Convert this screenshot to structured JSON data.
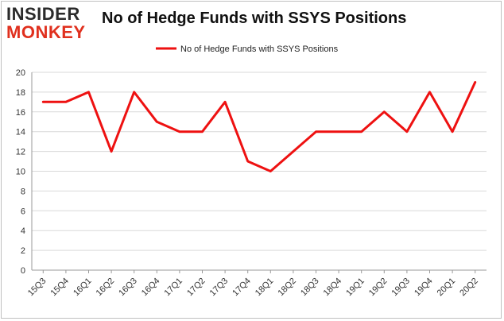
{
  "logo": {
    "line1": "INSIDER",
    "line2": "MONKEY"
  },
  "chart_data": {
    "type": "line",
    "title": "No of Hedge Funds with SSYS Positions",
    "xlabel": "",
    "ylabel": "",
    "ylim": [
      0,
      20
    ],
    "yticks": [
      0,
      2,
      4,
      6,
      8,
      10,
      12,
      14,
      16,
      18,
      20
    ],
    "grid": "horizontal",
    "legend_position": "top-center",
    "categories": [
      "15Q3",
      "15Q4",
      "16Q1",
      "16Q2",
      "16Q3",
      "16Q4",
      "17Q1",
      "17Q2",
      "17Q3",
      "17Q4",
      "18Q1",
      "18Q2",
      "18Q3",
      "18Q4",
      "19Q1",
      "19Q2",
      "19Q3",
      "19Q4",
      "20Q1",
      "20Q2"
    ],
    "series": [
      {
        "name": "No of Hedge Funds with SSYS Positions",
        "color": "#ee1111",
        "values": [
          17,
          17,
          18,
          12,
          18,
          15,
          14,
          14,
          17,
          11,
          10,
          12,
          14,
          14,
          14,
          16,
          14,
          18,
          14,
          19
        ]
      }
    ]
  }
}
